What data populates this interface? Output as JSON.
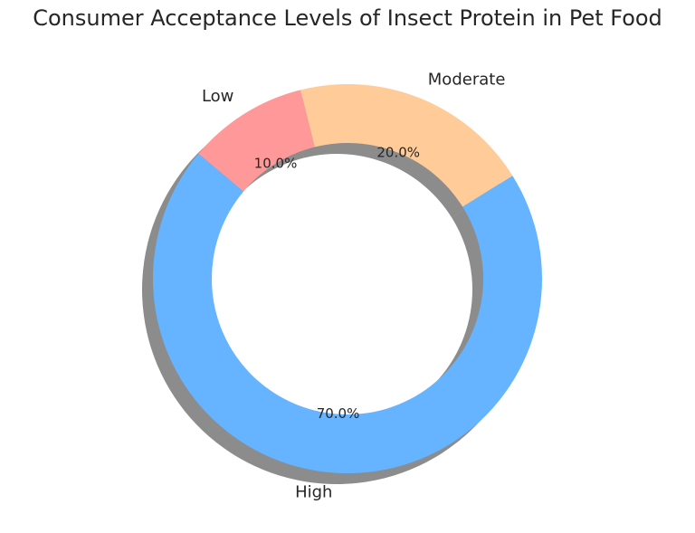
{
  "chart_data": {
    "type": "pie",
    "variant": "donut",
    "title": "Consumer Acceptance Levels of Insect Protein in Pet Food",
    "categories": [
      "High",
      "Moderate",
      "Low"
    ],
    "values": [
      70,
      20,
      10
    ],
    "percent_labels": [
      "70.0%",
      "20.0%",
      "10.0%"
    ],
    "colors": [
      "#66b3ff",
      "#ffcc99",
      "#ff9999"
    ],
    "shadow": true,
    "start_angle_deg": 140,
    "legend": "none"
  }
}
